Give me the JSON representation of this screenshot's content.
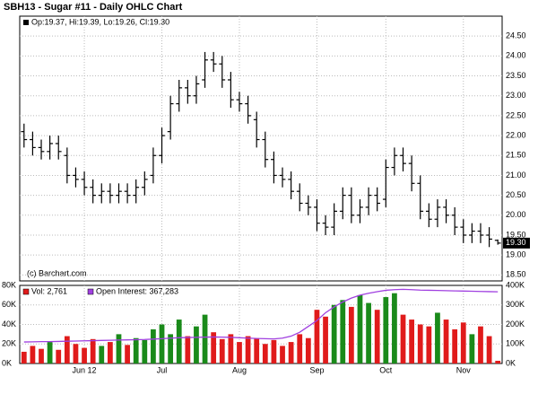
{
  "chart_data": [
    {
      "type": "ohlc",
      "title": "SBH13 - Sugar #11 - Daily OHLC Chart",
      "legend_text": "Op:19.37, Hi:19.39, Lo:19.26, Cl:19.30",
      "credit": "(c) Barchart.com",
      "last_value_label": "19.30",
      "color": "#000000",
      "grid": true,
      "ylim": [
        18.35,
        25.0
      ],
      "yticks": [
        {
          "value": 18.5,
          "label": "18.50"
        },
        {
          "value": 19,
          "label": "19.00"
        },
        {
          "value": 19.5,
          "label": "19.50"
        },
        {
          "value": 20,
          "label": "20.00"
        },
        {
          "value": 20.5,
          "label": "20.50"
        },
        {
          "value": 21,
          "label": "21.00"
        },
        {
          "value": 21.5,
          "label": "21.50"
        },
        {
          "value": 22,
          "label": "22.00"
        },
        {
          "value": 22.5,
          "label": "22.50"
        },
        {
          "value": 23,
          "label": "23.00"
        },
        {
          "value": 23.5,
          "label": "23.50"
        },
        {
          "value": 24,
          "label": "24.00"
        },
        {
          "value": 24.5,
          "label": "24.50"
        }
      ],
      "open": [
        22.1,
        21.9,
        21.7,
        21.6,
        21.8,
        21.5,
        21.0,
        20.9,
        20.7,
        20.5,
        20.6,
        20.5,
        20.6,
        20.5,
        20.7,
        21.0,
        21.5,
        22.1,
        22.8,
        23.2,
        23.0,
        23.4,
        23.9,
        23.8,
        23.4,
        22.9,
        22.8,
        22.4,
        21.9,
        21.4,
        21.0,
        20.9,
        20.6,
        20.3,
        20.2,
        19.8,
        19.7,
        20.1,
        20.5,
        20.0,
        20.2,
        20.5,
        20.4,
        21.2,
        21.5,
        21.3,
        20.8,
        20.1,
        19.9,
        20.2,
        20.0,
        19.7,
        19.5,
        19.6,
        19.5,
        19.37
      ],
      "high": [
        22.3,
        22.1,
        21.9,
        22.0,
        22.0,
        21.7,
        21.2,
        21.1,
        20.9,
        20.8,
        20.8,
        20.8,
        20.8,
        20.9,
        21.1,
        21.7,
        22.2,
        23.0,
        23.4,
        23.4,
        23.5,
        24.1,
        24.1,
        24.0,
        23.6,
        23.1,
        23.0,
        22.6,
        22.1,
        21.6,
        21.2,
        21.1,
        20.8,
        20.5,
        20.4,
        20.0,
        20.3,
        20.7,
        20.7,
        20.4,
        20.7,
        20.7,
        21.4,
        21.7,
        21.7,
        21.5,
        21.0,
        20.3,
        20.4,
        20.4,
        20.2,
        19.9,
        19.8,
        19.8,
        19.7,
        19.39
      ],
      "low": [
        21.7,
        21.5,
        21.4,
        21.4,
        21.4,
        20.8,
        20.7,
        20.5,
        20.3,
        20.3,
        20.3,
        20.3,
        20.3,
        20.3,
        20.5,
        20.8,
        21.3,
        21.9,
        22.6,
        22.8,
        22.8,
        23.2,
        23.6,
        23.2,
        22.7,
        22.6,
        22.3,
        21.7,
        21.2,
        20.8,
        20.7,
        20.4,
        20.1,
        20.0,
        19.6,
        19.5,
        19.5,
        19.9,
        19.8,
        19.8,
        20.0,
        20.1,
        20.2,
        21.0,
        21.1,
        20.6,
        19.9,
        19.7,
        19.7,
        19.8,
        19.5,
        19.3,
        19.3,
        19.3,
        19.2,
        19.26
      ],
      "close": [
        21.9,
        21.7,
        21.6,
        21.8,
        21.6,
        21.0,
        20.9,
        20.7,
        20.5,
        20.6,
        20.5,
        20.6,
        20.5,
        20.7,
        20.9,
        21.5,
        22.0,
        22.8,
        23.2,
        23.0,
        23.3,
        23.9,
        23.8,
        23.4,
        22.9,
        22.8,
        22.5,
        21.9,
        21.4,
        21.0,
        20.9,
        20.6,
        20.3,
        20.2,
        19.8,
        19.7,
        20.1,
        20.5,
        20.0,
        20.2,
        20.5,
        20.3,
        21.2,
        21.5,
        21.3,
        20.8,
        20.1,
        19.9,
        20.2,
        20.0,
        19.7,
        19.5,
        19.6,
        19.5,
        19.4,
        19.3
      ]
    },
    {
      "type": "volume",
      "categories": [
        null,
        null,
        null,
        null,
        null,
        null,
        null,
        "Jun 12",
        null,
        null,
        null,
        null,
        null,
        null,
        null,
        null,
        "Jul",
        null,
        null,
        null,
        null,
        null,
        null,
        null,
        null,
        "Aug",
        null,
        null,
        null,
        null,
        null,
        null,
        null,
        null,
        "Sep",
        null,
        null,
        null,
        null,
        null,
        null,
        null,
        "Oct",
        null,
        null,
        null,
        null,
        null,
        null,
        null,
        null,
        "Nov",
        null,
        null,
        null,
        null
      ],
      "up_color": "#1a8a1a",
      "down_color": "#e01b1b",
      "grid": true,
      "ylim": [
        0,
        80000
      ],
      "yticks": [
        {
          "value": 0,
          "label": "0K"
        },
        {
          "value": 20000,
          "label": "20K"
        },
        {
          "value": 40000,
          "label": "40K"
        },
        {
          "value": 60000,
          "label": "60K"
        },
        {
          "value": 80000,
          "label": "80K"
        }
      ],
      "y2lim": [
        0,
        400000
      ],
      "y2ticks": [
        {
          "value": 0,
          "label": "0K"
        },
        {
          "value": 100000,
          "label": "100K"
        },
        {
          "value": 200000,
          "label": "200K"
        },
        {
          "value": 300000,
          "label": "300K"
        },
        {
          "value": 400000,
          "label": "400K"
        }
      ],
      "series": [
        {
          "name": "Vol: 2,761",
          "color": "#e01b1b",
          "values": [
            12000,
            18000,
            15000,
            22000,
            14000,
            28000,
            20000,
            16000,
            25000,
            18000,
            22000,
            30000,
            19000,
            26000,
            24000,
            35000,
            40000,
            30000,
            45000,
            28000,
            38000,
            50000,
            32000,
            25000,
            30000,
            22000,
            28000,
            26000,
            20000,
            24000,
            18000,
            22000,
            30000,
            26000,
            55000,
            48000,
            60000,
            65000,
            58000,
            70000,
            62000,
            55000,
            68000,
            72000,
            50000,
            45000,
            40000,
            38000,
            52000,
            45000,
            35000,
            42000,
            30000,
            38000,
            28000,
            2761
          ]
        },
        {
          "name": "Open Interest: 367,283",
          "color": "#a040e0",
          "axis": "y2",
          "values": [
            110000,
            111000,
            112000,
            112000,
            113000,
            114000,
            115000,
            116000,
            117000,
            118000,
            119000,
            120000,
            121000,
            122000,
            123000,
            125000,
            127000,
            130000,
            132000,
            133000,
            134000,
            135000,
            136000,
            135000,
            134000,
            132000,
            130000,
            128000,
            127000,
            126000,
            130000,
            140000,
            160000,
            190000,
            220000,
            260000,
            290000,
            315000,
            335000,
            350000,
            360000,
            368000,
            375000,
            378000,
            380000,
            378000,
            376000,
            375000,
            374000,
            373000,
            372000,
            371000,
            370000,
            369000,
            368000,
            367283
          ]
        }
      ]
    }
  ]
}
